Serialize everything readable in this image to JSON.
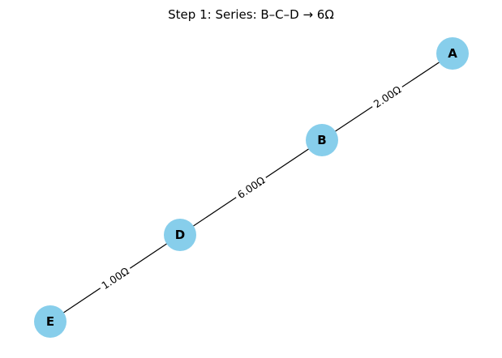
{
  "title": "Step 1: Series: B–C–D → 6Ω",
  "colors": {
    "node_fill": "#87ceeb",
    "edge": "#000000",
    "label_bg": "#ffffff"
  },
  "nodes": [
    {
      "id": "A",
      "label": "A"
    },
    {
      "id": "B",
      "label": "B"
    },
    {
      "id": "D",
      "label": "D"
    },
    {
      "id": "E",
      "label": "E"
    }
  ],
  "edges": [
    {
      "from": "A",
      "to": "B",
      "label": "2.00Ω"
    },
    {
      "from": "B",
      "to": "D",
      "label": "6.00Ω"
    },
    {
      "from": "D",
      "to": "E",
      "label": "1.00Ω"
    }
  ]
}
